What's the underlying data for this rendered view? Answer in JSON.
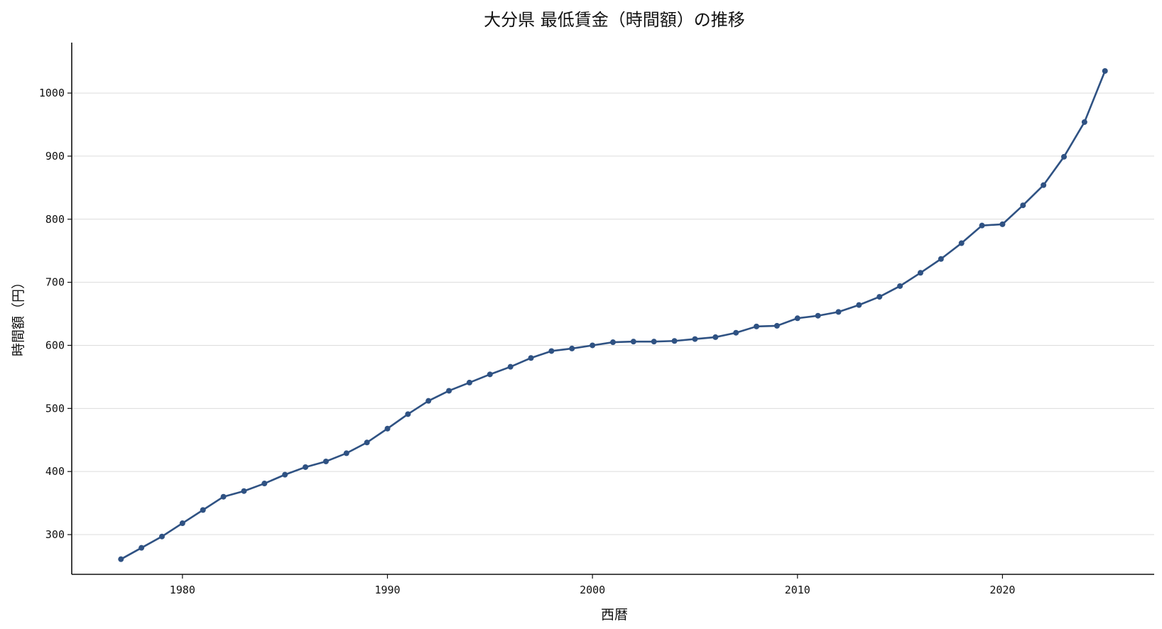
{
  "chart_data": {
    "type": "line",
    "title": "大分県 最低賃金（時間額）の推移",
    "xlabel": "西暦",
    "ylabel": "時間額（円）",
    "xlim": [
      1974.6,
      2027.4
    ],
    "ylim": [
      237,
      1080
    ],
    "xticks": [
      1980,
      1990,
      2000,
      2010,
      2020
    ],
    "yticks": [
      300,
      400,
      500,
      600,
      700,
      800,
      900,
      1000
    ],
    "grid": "horizontal",
    "color": "#2f5283",
    "series": [
      {
        "x": [
          1977,
          1978,
          1979,
          1980,
          1981,
          1982,
          1983,
          1984,
          1985,
          1986,
          1987,
          1988,
          1989,
          1990,
          1991,
          1992,
          1993,
          1994,
          1995,
          1996,
          1997,
          1998,
          1999,
          2000,
          2001,
          2002,
          2003,
          2004,
          2005,
          2006,
          2007,
          2008,
          2009,
          2010,
          2011,
          2012,
          2013,
          2014,
          2015,
          2016,
          2017,
          2018,
          2019,
          2020,
          2021,
          2022,
          2023,
          2024,
          2025
        ],
        "y": [
          261,
          279,
          297,
          318,
          339,
          360,
          369,
          381,
          395,
          407,
          416,
          429,
          446,
          468,
          491,
          512,
          528,
          541,
          554,
          566,
          580,
          591,
          595,
          600,
          605,
          606,
          606,
          607,
          610,
          613,
          620,
          630,
          631,
          643,
          647,
          653,
          664,
          677,
          694,
          715,
          737,
          762,
          790,
          792,
          822,
          854,
          899,
          954,
          1035
        ]
      }
    ]
  }
}
